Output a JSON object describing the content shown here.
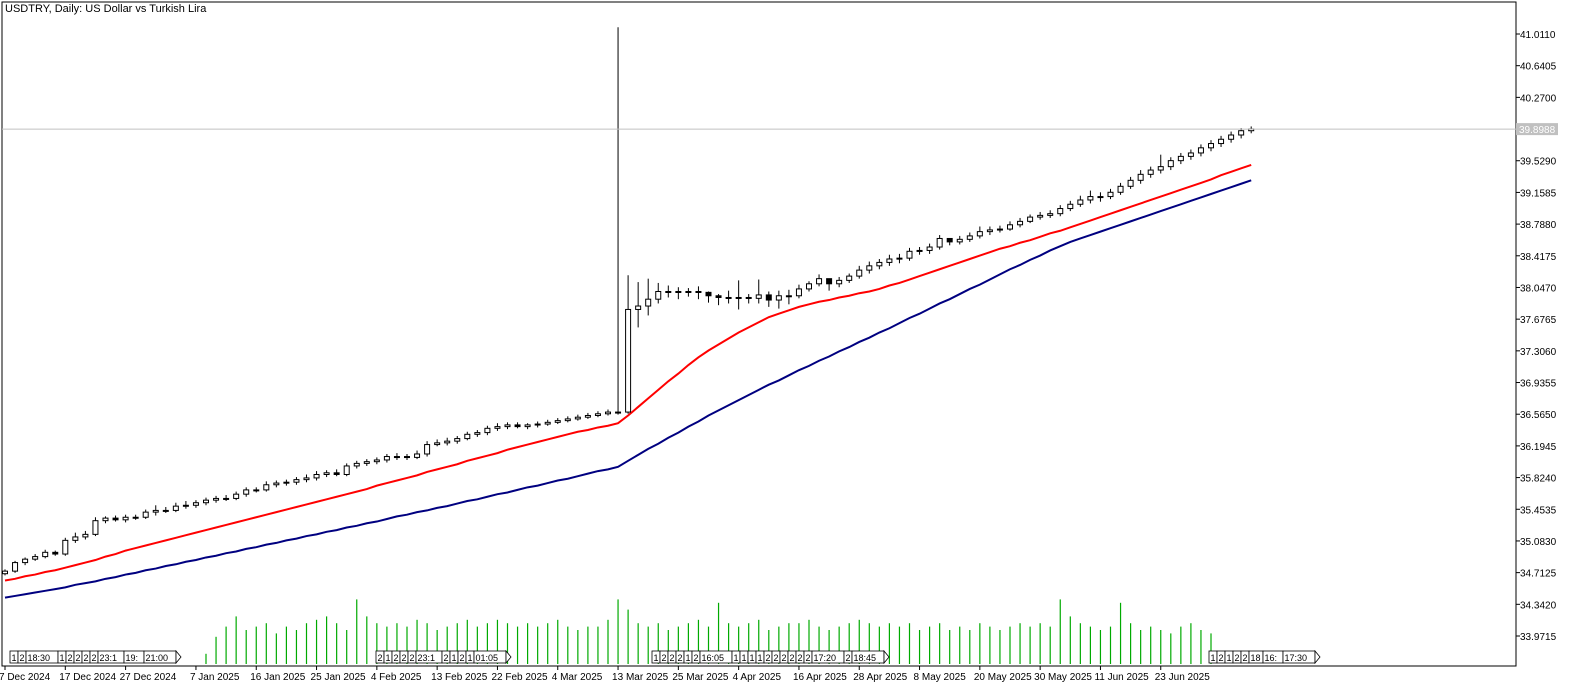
{
  "header": {
    "title": "USDTRY, Daily:  US Dollar vs Turkish Lira"
  },
  "colors": {
    "background": "#ffffff",
    "candle": "#000000",
    "ma_fast": "#ff0000",
    "ma_slow": "#000080",
    "volume": "#00aa00",
    "price_line": "#c0c0c0",
    "price_label_bg": "#c0c0c0"
  },
  "chart_data": {
    "type": "candlestick",
    "symbol": "USDTRY",
    "timeframe": "Daily",
    "y_ticks": [
      "41.0110",
      "40.6405",
      "40.2700",
      "39.5290",
      "39.1585",
      "38.7880",
      "38.4175",
      "38.0470",
      "37.6765",
      "37.3060",
      "36.9355",
      "36.5650",
      "36.1945",
      "35.8240",
      "35.4535",
      "35.0830",
      "34.7125",
      "34.3420",
      "33.9715"
    ],
    "ylim": [
      33.8,
      41.2
    ],
    "current_price": "39.8988",
    "x_tick_labels": [
      "7 Dec 2024",
      "17 Dec 2024",
      "27 Dec 2024",
      "7 Jan 2025",
      "16 Jan 2025",
      "25 Jan 2025",
      "4 Feb 2025",
      "13 Feb 2025",
      "22 Feb 2025",
      "4 Mar 2025",
      "13 Mar 2025",
      "25 Mar 2025",
      "4 Apr 2025",
      "16 Apr 2025",
      "28 Apr 2025",
      "8 May 2025",
      "20 May 2025",
      "30 May 2025",
      "11 Jun 2025",
      "23 Jun 2025"
    ],
    "x_tick_index": [
      0,
      6,
      12,
      19,
      25,
      31,
      37,
      43,
      49,
      55,
      61,
      67,
      73,
      79,
      85,
      91,
      97,
      103,
      109,
      115
    ],
    "series": [
      {
        "name": "USDTRY",
        "kind": "ohlc",
        "close": [
          34.73,
          34.83,
          34.87,
          34.9,
          34.95,
          34.93,
          35.09,
          35.13,
          35.16,
          35.32,
          35.35,
          35.33,
          35.36,
          35.36,
          35.42,
          35.44,
          35.44,
          35.49,
          35.5,
          35.53,
          35.56,
          35.58,
          35.58,
          35.63,
          35.68,
          35.68,
          35.74,
          35.76,
          35.77,
          35.8,
          35.82,
          35.86,
          35.88,
          35.86,
          35.96,
          35.99,
          36.01,
          36.03,
          36.07,
          36.07,
          36.06,
          36.1,
          36.21,
          36.23,
          36.25,
          36.28,
          36.33,
          36.35,
          36.4,
          36.42,
          36.44,
          36.42,
          36.44,
          36.45,
          36.47,
          36.49,
          36.51,
          36.53,
          36.55,
          36.57,
          36.59,
          36.59,
          37.79,
          37.83,
          37.91,
          38,
          37.99,
          38,
          38,
          37.99,
          37.95,
          37.93,
          37.92,
          37.93,
          37.92,
          37.96,
          37.9,
          37.95,
          37.95,
          38.03,
          38.09,
          38.15,
          38.09,
          38.13,
          38.18,
          38.25,
          38.3,
          38.34,
          38.38,
          38.39,
          38.47,
          38.48,
          38.52,
          38.62,
          38.58,
          38.61,
          38.65,
          38.7,
          38.72,
          38.73,
          38.78,
          38.82,
          38.87,
          38.89,
          38.91,
          38.97,
          39.02,
          39.07,
          39.11,
          39.11,
          39.16,
          39.23,
          39.3,
          39.37,
          39.42,
          39.46,
          39.53,
          39.58,
          39.62,
          39.68,
          39.73,
          39.78,
          39.83,
          39.88,
          39.9
        ],
        "open": [
          34.7,
          34.73,
          34.83,
          34.87,
          34.9,
          34.95,
          34.93,
          35.09,
          35.13,
          35.16,
          35.32,
          35.35,
          35.33,
          35.36,
          35.36,
          35.42,
          35.44,
          35.44,
          35.49,
          35.5,
          35.53,
          35.56,
          35.58,
          35.58,
          35.63,
          35.68,
          35.68,
          35.74,
          35.76,
          35.77,
          35.8,
          35.82,
          35.86,
          35.88,
          35.86,
          35.96,
          35.99,
          36.01,
          36.03,
          36.07,
          36.07,
          36.06,
          36.1,
          36.21,
          36.23,
          36.25,
          36.28,
          36.33,
          36.35,
          36.4,
          36.42,
          36.44,
          36.42,
          36.44,
          36.45,
          36.47,
          36.49,
          36.51,
          36.53,
          36.55,
          36.57,
          36.59,
          36.59,
          37.79,
          37.83,
          37.91,
          38,
          37.99,
          38,
          38,
          37.99,
          37.95,
          37.93,
          37.92,
          37.93,
          37.92,
          37.96,
          37.9,
          37.95,
          37.95,
          38.03,
          38.09,
          38.15,
          38.09,
          38.13,
          38.18,
          38.25,
          38.3,
          38.34,
          38.38,
          38.39,
          38.47,
          38.48,
          38.52,
          38.62,
          38.58,
          38.61,
          38.65,
          38.7,
          38.72,
          38.73,
          38.78,
          38.82,
          38.87,
          38.89,
          38.91,
          38.97,
          39.02,
          39.07,
          39.11,
          39.11,
          39.16,
          39.23,
          39.3,
          39.37,
          39.42,
          39.46,
          39.53,
          39.58,
          39.62,
          39.68,
          39.73,
          39.78,
          39.83,
          39.88
        ],
        "high": [
          34.75,
          34.85,
          34.89,
          34.93,
          34.98,
          34.97,
          35.12,
          35.18,
          35.2,
          35.36,
          35.37,
          35.38,
          35.39,
          35.39,
          35.45,
          35.5,
          35.48,
          35.53,
          35.55,
          35.56,
          35.59,
          35.61,
          35.62,
          35.66,
          35.71,
          35.71,
          35.78,
          35.79,
          35.8,
          35.83,
          35.86,
          35.9,
          35.91,
          35.92,
          35.99,
          36.02,
          36.04,
          36.06,
          36.1,
          36.11,
          36.1,
          36.14,
          36.25,
          36.27,
          36.29,
          36.31,
          36.36,
          36.38,
          36.43,
          36.46,
          36.47,
          36.47,
          36.46,
          36.48,
          36.5,
          36.52,
          36.54,
          36.56,
          36.58,
          36.6,
          36.62,
          41.09,
          38.19,
          38.11,
          38.15,
          38.1,
          38.07,
          38.05,
          38.04,
          38.06,
          38,
          37.97,
          38.01,
          38.13,
          37.97,
          38.14,
          38,
          38.01,
          38.02,
          38.08,
          38.12,
          38.2,
          38.13,
          38.17,
          38.21,
          38.3,
          38.35,
          38.38,
          38.43,
          38.44,
          38.51,
          38.52,
          38.56,
          38.66,
          38.62,
          38.65,
          38.69,
          38.76,
          38.76,
          38.77,
          38.82,
          38.86,
          38.9,
          38.93,
          38.95,
          39.01,
          39.06,
          39.12,
          39.18,
          39.16,
          39.2,
          39.27,
          39.34,
          39.42,
          39.46,
          39.6,
          39.57,
          39.62,
          39.66,
          39.72,
          39.77,
          39.82,
          39.87,
          39.91,
          39.93
        ],
        "low": [
          34.68,
          34.71,
          34.8,
          34.85,
          34.88,
          34.91,
          34.91,
          35.06,
          35.1,
          35.14,
          35.29,
          35.31,
          35.3,
          35.33,
          35.34,
          35.38,
          35.41,
          35.42,
          35.46,
          35.47,
          35.5,
          35.53,
          35.55,
          35.56,
          35.6,
          35.65,
          35.66,
          35.71,
          35.73,
          35.74,
          35.77,
          35.79,
          35.83,
          35.84,
          35.84,
          35.93,
          35.96,
          35.98,
          36,
          36.03,
          36.03,
          36.04,
          36.07,
          36.19,
          36.2,
          36.22,
          36.26,
          36.3,
          36.32,
          36.37,
          36.39,
          36.4,
          36.39,
          36.41,
          36.43,
          36.45,
          36.47,
          36.49,
          36.51,
          36.53,
          36.55,
          36.56,
          36.57,
          37.58,
          37.72,
          37.86,
          37.93,
          37.91,
          37.94,
          37.91,
          37.87,
          37.84,
          37.86,
          37.79,
          37.86,
          37.86,
          37.82,
          37.8,
          37.85,
          37.92,
          38,
          38.06,
          38.01,
          38.05,
          38.1,
          38.15,
          38.21,
          38.26,
          38.3,
          38.33,
          38.36,
          38.43,
          38.44,
          38.49,
          38.54,
          38.55,
          38.58,
          38.62,
          38.66,
          38.69,
          38.71,
          38.75,
          38.8,
          38.84,
          38.86,
          38.88,
          38.94,
          38.99,
          39.03,
          39.05,
          39.08,
          39.13,
          39.2,
          39.26,
          39.33,
          39.38,
          39.42,
          39.49,
          39.54,
          39.58,
          39.64,
          39.69,
          39.74,
          39.79,
          39.85
        ]
      },
      {
        "name": "MA fast",
        "kind": "line",
        "values": [
          34.62,
          34.64,
          34.67,
          34.69,
          34.72,
          34.74,
          34.77,
          34.8,
          34.83,
          34.86,
          34.9,
          34.93,
          34.97,
          35,
          35.03,
          35.06,
          35.09,
          35.12,
          35.15,
          35.18,
          35.21,
          35.24,
          35.27,
          35.3,
          35.33,
          35.36,
          35.39,
          35.42,
          35.45,
          35.48,
          35.51,
          35.54,
          35.57,
          35.6,
          35.63,
          35.66,
          35.69,
          35.73,
          35.76,
          35.79,
          35.82,
          35.85,
          35.89,
          35.92,
          35.95,
          35.98,
          36.02,
          36.05,
          36.08,
          36.11,
          36.15,
          36.18,
          36.21,
          36.24,
          36.27,
          36.3,
          36.33,
          36.36,
          36.38,
          36.41,
          36.43,
          36.46,
          36.55,
          36.65,
          36.75,
          36.85,
          36.95,
          37.04,
          37.14,
          37.23,
          37.31,
          37.38,
          37.45,
          37.52,
          37.58,
          37.64,
          37.7,
          37.74,
          37.78,
          37.82,
          37.85,
          37.88,
          37.9,
          37.93,
          37.95,
          37.98,
          38,
          38.03,
          38.07,
          38.1,
          38.14,
          38.18,
          38.22,
          38.26,
          38.3,
          38.34,
          38.38,
          38.42,
          38.46,
          38.5,
          38.53,
          38.57,
          38.6,
          38.64,
          38.68,
          38.71,
          38.75,
          38.79,
          38.83,
          38.87,
          38.91,
          38.95,
          38.99,
          39.03,
          39.07,
          39.11,
          39.15,
          39.19,
          39.23,
          39.27,
          39.31,
          39.36,
          39.4,
          39.44,
          39.48
        ]
      },
      {
        "name": "MA slow",
        "kind": "line",
        "values": [
          34.42,
          34.44,
          34.46,
          34.48,
          34.5,
          34.52,
          34.54,
          34.57,
          34.59,
          34.61,
          34.64,
          34.66,
          34.69,
          34.71,
          34.74,
          34.76,
          34.79,
          34.81,
          34.84,
          34.86,
          34.89,
          34.91,
          34.94,
          34.96,
          34.99,
          35.01,
          35.04,
          35.06,
          35.09,
          35.11,
          35.14,
          35.16,
          35.19,
          35.21,
          35.24,
          35.26,
          35.29,
          35.31,
          35.34,
          35.37,
          35.39,
          35.42,
          35.44,
          35.47,
          35.49,
          35.52,
          35.55,
          35.57,
          35.6,
          35.63,
          35.65,
          35.68,
          35.71,
          35.73,
          35.76,
          35.79,
          35.81,
          35.84,
          35.87,
          35.9,
          35.92,
          35.95,
          36.02,
          36.09,
          36.16,
          36.22,
          36.29,
          36.35,
          36.42,
          36.48,
          36.55,
          36.61,
          36.67,
          36.73,
          36.79,
          36.85,
          36.91,
          36.96,
          37.02,
          37.08,
          37.13,
          37.19,
          37.24,
          37.3,
          37.35,
          37.41,
          37.46,
          37.52,
          37.57,
          37.63,
          37.69,
          37.74,
          37.8,
          37.86,
          37.91,
          37.97,
          38.03,
          38.08,
          38.14,
          38.2,
          38.26,
          38.31,
          38.37,
          38.42,
          38.48,
          38.53,
          38.58,
          38.62,
          38.66,
          38.7,
          38.74,
          38.78,
          38.82,
          38.86,
          38.9,
          38.94,
          38.98,
          39.02,
          39.06,
          39.1,
          39.14,
          39.18,
          39.22,
          39.26,
          39.3
        ]
      },
      {
        "name": "Volume",
        "kind": "volume",
        "values": [
          0,
          0,
          0,
          0,
          0,
          0,
          0,
          0,
          0,
          0,
          0,
          0,
          0,
          0,
          0,
          0,
          0,
          0,
          0,
          0,
          0,
          0,
          0,
          0,
          0,
          0,
          0,
          0,
          0,
          0,
          0,
          0,
          0,
          0,
          0,
          0,
          0,
          0,
          0,
          0,
          0,
          0,
          0,
          0,
          0,
          0,
          0,
          0,
          0,
          0,
          0,
          0,
          0,
          0,
          0,
          0,
          0,
          0,
          0,
          0,
          0,
          0,
          0,
          0,
          0,
          0,
          0,
          0,
          0,
          0,
          0,
          0,
          0,
          0,
          0,
          0,
          0,
          0,
          0,
          0,
          0,
          0,
          0,
          0,
          0,
          0,
          0,
          0,
          0,
          0,
          0,
          0,
          0,
          0,
          0,
          0,
          0,
          0,
          0,
          0,
          0,
          0,
          0,
          0,
          0,
          0,
          0,
          0,
          0,
          0,
          0,
          0,
          0,
          0,
          0,
          0,
          0,
          0,
          0,
          0,
          0,
          0,
          0,
          0,
          0
        ]
      }
    ],
    "volume_levels": [
      0,
      0,
      0,
      0,
      0,
      0,
      0,
      0,
      0,
      0,
      0,
      0,
      0,
      0,
      0,
      0,
      0,
      0,
      0,
      0,
      0.15,
      0.4,
      0.55,
      0.7,
      0.5,
      0.55,
      0.6,
      0.45,
      0.55,
      0.5,
      0.6,
      0.65,
      0.7,
      0.6,
      0.5,
      0.95,
      0.7,
      0.6,
      0.55,
      0.6,
      0.55,
      0.65,
      0.6,
      0.5,
      0.55,
      0.6,
      0.65,
      0.55,
      0.6,
      0.65,
      0.6,
      0.55,
      0.6,
      0.55,
      0.6,
      0.65,
      0.55,
      0.5,
      0.55,
      0.55,
      0.65,
      0.95,
      0.8,
      0.6,
      0.55,
      0.6,
      0.5,
      0.55,
      0.6,
      0.65,
      0.55,
      0.9,
      0.6,
      0.55,
      0.6,
      0.65,
      0.5,
      0.55,
      0.6,
      0.6,
      0.65,
      0.55,
      0.5,
      0.55,
      0.6,
      0.65,
      0.6,
      0.55,
      0.6,
      0.55,
      0.6,
      0.5,
      0.55,
      0.6,
      0.5,
      0.55,
      0.5,
      0.6,
      0.55,
      0.5,
      0.55,
      0.6,
      0.55,
      0.6,
      0.55,
      0.95,
      0.7,
      0.6,
      0.55,
      0.5,
      0.55,
      0.9,
      0.6,
      0.5,
      0.55,
      0.5,
      0.45,
      0.55,
      0.6,
      0.5,
      0.45
    ]
  },
  "price_axis_tags": [
    {
      "group": "a",
      "labels": [
        "1",
        "2",
        "18:30",
        "1",
        "2",
        "2",
        "2",
        "2",
        "23:1",
        "19:",
        "21:00"
      ]
    },
    {
      "group": "b",
      "labels": [
        "2",
        "1",
        "2",
        "2",
        "2",
        "23:1",
        "2",
        "1",
        "2",
        "1",
        "01:05"
      ]
    },
    {
      "group": "c",
      "labels": [
        "1",
        "2",
        "2",
        "2",
        "1",
        "2",
        "16:05",
        "1",
        "1",
        "1",
        "1",
        "2",
        "2",
        "2",
        "2",
        "2",
        "2",
        "17:20",
        "2",
        "18:45"
      ]
    },
    {
      "group": "d",
      "labels": [
        "1",
        "2",
        "1",
        "2",
        "2",
        "18",
        "16:",
        "17:30"
      ]
    }
  ]
}
